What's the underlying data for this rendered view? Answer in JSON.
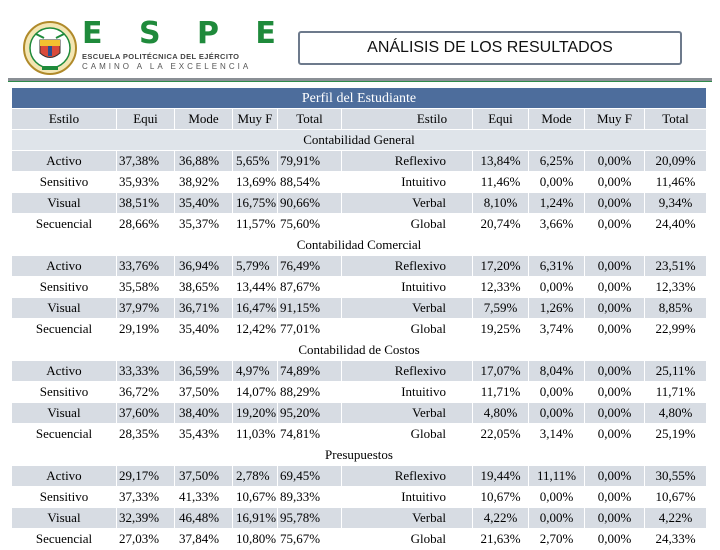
{
  "brand": {
    "letters": "E S P E",
    "institution": "ESCUELA POLITÉCNICA DEL EJÉRCITO",
    "motto": "CAMINO A LA EXCELENCIA",
    "accent_color": "#1f8a3b"
  },
  "title": "ANÁLISIS DE LOS RESULTADOS",
  "table": {
    "caption": "Perfil del Estudiante",
    "columns": [
      "Estilo",
      "Equi",
      "Mode",
      "Muy F",
      "Total",
      "Estilo",
      "Equi",
      "Mode",
      "Muy F",
      "Total"
    ],
    "sections": [
      {
        "name": "Contabilidad General",
        "rows": [
          [
            "Activo",
            "37,38%",
            "36,88%",
            "5,65%",
            "79,91%",
            "Reflexivo",
            "13,84%",
            "6,25%",
            "0,00%",
            "20,09%"
          ],
          [
            "Sensitivo",
            "35,93%",
            "38,92%",
            "13,69%",
            "88,54%",
            "Intuitivo",
            "11,46%",
            "0,00%",
            "0,00%",
            "11,46%"
          ],
          [
            "Visual",
            "38,51%",
            "35,40%",
            "16,75%",
            "90,66%",
            "Verbal",
            "8,10%",
            "1,24%",
            "0,00%",
            "9,34%"
          ],
          [
            "Secuencial",
            "28,66%",
            "35,37%",
            "11,57%",
            "75,60%",
            "Global",
            "20,74%",
            "3,66%",
            "0,00%",
            "24,40%"
          ]
        ]
      },
      {
        "name": "Contabilidad Comercial",
        "rows": [
          [
            "Activo",
            "33,76%",
            "36,94%",
            "5,79%",
            "76,49%",
            "Reflexivo",
            "17,20%",
            "6,31%",
            "0,00%",
            "23,51%"
          ],
          [
            "Sensitivo",
            "35,58%",
            "38,65%",
            "13,44%",
            "87,67%",
            "Intuitivo",
            "12,33%",
            "0,00%",
            "0,00%",
            "12,33%"
          ],
          [
            "Visual",
            "37,97%",
            "36,71%",
            "16,47%",
            "91,15%",
            "Verbal",
            "7,59%",
            "1,26%",
            "0,00%",
            "8,85%"
          ],
          [
            "Secuencial",
            "29,19%",
            "35,40%",
            "12,42%",
            "77,01%",
            "Global",
            "19,25%",
            "3,74%",
            "0,00%",
            "22,99%"
          ]
        ]
      },
      {
        "name": "Contabilidad de Costos",
        "rows": [
          [
            "Activo",
            "33,33%",
            "36,59%",
            "4,97%",
            "74,89%",
            "Reflexivo",
            "17,07%",
            "8,04%",
            "0,00%",
            "25,11%"
          ],
          [
            "Sensitivo",
            "36,72%",
            "37,50%",
            "14,07%",
            "88,29%",
            "Intuitivo",
            "11,71%",
            "0,00%",
            "0,00%",
            "11,71%"
          ],
          [
            "Visual",
            "37,60%",
            "38,40%",
            "19,20%",
            "95,20%",
            "Verbal",
            "4,80%",
            "0,00%",
            "0,00%",
            "4,80%"
          ],
          [
            "Secuencial",
            "28,35%",
            "35,43%",
            "11,03%",
            "74,81%",
            "Global",
            "22,05%",
            "3,14%",
            "0,00%",
            "25,19%"
          ]
        ]
      },
      {
        "name": "Presupuestos",
        "rows": [
          [
            "Activo",
            "29,17%",
            "37,50%",
            "2,78%",
            "69,45%",
            "Reflexivo",
            "19,44%",
            "11,11%",
            "0,00%",
            "30,55%"
          ],
          [
            "Sensitivo",
            "37,33%",
            "41,33%",
            "10,67%",
            "89,33%",
            "Intuitivo",
            "10,67%",
            "0,00%",
            "0,00%",
            "10,67%"
          ],
          [
            "Visual",
            "32,39%",
            "46,48%",
            "16,91%",
            "95,78%",
            "Verbal",
            "4,22%",
            "0,00%",
            "0,00%",
            "4,22%"
          ],
          [
            "Secuencial",
            "27,03%",
            "37,84%",
            "10,80%",
            "75,67%",
            "Global",
            "21,63%",
            "2,70%",
            "0,00%",
            "24,33%"
          ]
        ]
      }
    ]
  }
}
